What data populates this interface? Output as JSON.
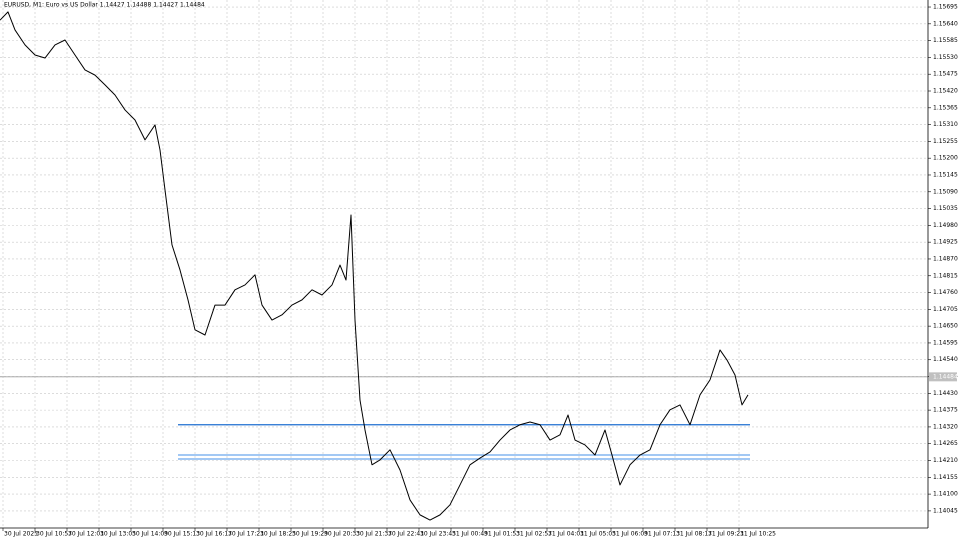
{
  "chart_data": {
    "type": "line",
    "title": "EURUSD, M1: Euro vs US Dollar 1.14427 1.14488 1.14427 1.14484",
    "x": [
      0,
      16,
      30,
      50,
      70,
      90,
      110,
      130,
      150,
      170,
      190,
      210,
      230,
      250,
      270,
      290,
      310,
      320,
      330,
      344,
      360,
      376,
      390,
      410,
      430,
      450,
      470,
      490,
      510,
      524,
      544,
      564,
      584,
      604,
      624,
      644,
      664,
      680,
      692,
      702,
      710,
      720,
      730,
      744,
      760,
      780,
      800,
      820,
      840,
      860,
      880,
      900,
      920,
      940,
      960,
      980,
      1000,
      1020,
      1040,
      1060,
      1080,
      1100,
      1120,
      1136,
      1150,
      1170,
      1190,
      1210,
      1224,
      1240,
      1260,
      1280,
      1300,
      1320,
      1340,
      1360,
      1380,
      1400,
      1420,
      1440,
      1454,
      1470,
      1484,
      1496
    ],
    "series": [
      {
        "color": "#000000",
        "values": [
          1.15652,
          1.15679,
          1.1562,
          1.15571,
          1.15538,
          1.15528,
          1.15571,
          1.15587,
          1.15538,
          1.15489,
          1.15472,
          1.1544,
          1.15407,
          1.15358,
          1.15325,
          1.1526,
          1.15309,
          1.15227,
          1.15096,
          1.14916,
          1.14834,
          1.14736,
          1.14638,
          1.14621,
          1.14719,
          1.14719,
          1.14769,
          1.14785,
          1.14818,
          1.14719,
          1.1467,
          1.14687,
          1.14719,
          1.14736,
          1.14769,
          1.14752,
          1.14785,
          1.1485,
          1.14801,
          1.15014,
          1.1467,
          1.14408,
          1.1431,
          1.14196,
          1.14212,
          1.14245,
          1.14179,
          1.14081,
          1.14032,
          1.14015,
          1.14032,
          1.14065,
          1.1413,
          1.14196,
          1.14218,
          1.14238,
          1.14277,
          1.1431,
          1.14327,
          1.14336,
          1.14327,
          1.14277,
          1.14294,
          1.14359,
          1.14277,
          1.14261,
          1.14228,
          1.1431,
          1.14228,
          1.1413,
          1.14196,
          1.14228,
          1.14245,
          1.14327,
          1.14376,
          1.14392,
          1.14327,
          1.14425,
          1.14474,
          1.14572,
          1.14539,
          1.1449,
          1.14392,
          1.14425
        ]
      }
    ],
    "current_price": 1.14484,
    "levels": [
      {
        "value": 1.14327,
        "color": "#1f6fd1",
        "x": [
          356,
          1500
        ]
      },
      {
        "value": 1.14228,
        "color": "#6aa6ee",
        "x": [
          356,
          1500
        ]
      },
      {
        "value": 1.14215,
        "color": "#6aa6ee",
        "x": [
          356,
          1500
        ]
      }
    ],
    "xlim": [
      0,
      1856
    ],
    "xticks": [
      {
        "value": 6,
        "label": "30 Jul 2025"
      },
      {
        "value": 70,
        "label": "30 Jul 10:57"
      },
      {
        "value": 134,
        "label": "30 Jul 12:01"
      },
      {
        "value": 198,
        "label": "30 Jul 13:05"
      },
      {
        "value": 262,
        "label": "30 Jul 14:09"
      },
      {
        "value": 326,
        "label": "30 Jul 15:13"
      },
      {
        "value": 390,
        "label": "30 Jul 16:17"
      },
      {
        "value": 454,
        "label": "30 Jul 17:21"
      },
      {
        "value": 518,
        "label": "30 Jul 18:25"
      },
      {
        "value": 582,
        "label": "30 Jul 19:29"
      },
      {
        "value": 646,
        "label": "30 Jul 20:33"
      },
      {
        "value": 710,
        "label": "30 Jul 21:37"
      },
      {
        "value": 774,
        "label": "30 Jul 22:41"
      },
      {
        "value": 838,
        "label": "30 Jul 23:45"
      },
      {
        "value": 902,
        "label": "31 Jul 00:49"
      },
      {
        "value": 966,
        "label": "31 Jul 01:53"
      },
      {
        "value": 1030,
        "label": "31 Jul 02:57"
      },
      {
        "value": 1094,
        "label": "31 Jul 04:01"
      },
      {
        "value": 1158,
        "label": "31 Jul 05:05"
      },
      {
        "value": 1222,
        "label": "31 Jul 06:09"
      },
      {
        "value": 1286,
        "label": "31 Jul 07:13"
      },
      {
        "value": 1350,
        "label": "31 Jul 08:17"
      },
      {
        "value": 1414,
        "label": "31 Jul 09:21"
      },
      {
        "value": 1478,
        "label": "31 Jul 10:25"
      }
    ],
    "ylim": [
      1.13989,
      1.15718
    ],
    "yticks": [
      1.14045,
      {
        "value": 1.141,
        "label": "1.14100"
      },
      1.14155,
      {
        "value": 1.1421,
        "label": "1.14210"
      },
      1.14265,
      {
        "value": 1.1432,
        "label": "1.14320"
      },
      1.14375,
      {
        "value": 1.1443,
        "label": "1.14430"
      },
      1.14485,
      {
        "value": 1.1454,
        "label": "1.14540"
      },
      1.14595,
      {
        "value": 1.1465,
        "label": "1.14650"
      },
      1.14705,
      {
        "value": 1.1476,
        "label": "1.14760"
      },
      1.14815,
      {
        "value": 1.1487,
        "label": "1.14870"
      },
      1.14925,
      {
        "value": 1.1498,
        "label": "1.14980"
      },
      1.15035,
      {
        "value": 1.1509,
        "label": "1.15090"
      },
      1.15145,
      {
        "value": 1.152,
        "label": "1.15200"
      },
      1.15255,
      {
        "value": 1.1531,
        "label": "1.15310"
      },
      1.15365,
      {
        "value": 1.1542,
        "label": "1.15420"
      },
      1.15475,
      {
        "value": 1.1553,
        "label": "1.15530"
      },
      1.15585,
      {
        "value": 1.1564,
        "label": "1.15640"
      },
      1.15695
    ],
    "grid": true
  }
}
